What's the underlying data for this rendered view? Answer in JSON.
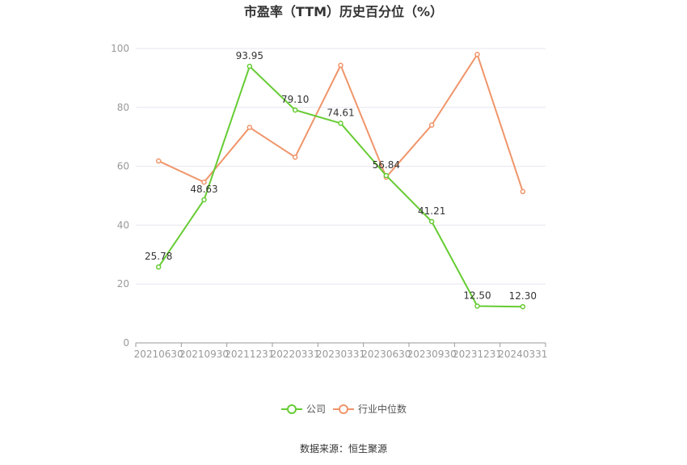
{
  "chart_data": {
    "type": "line",
    "title": "市盈率（TTM）历史百分位（%）",
    "categories": [
      "20210630",
      "20210930",
      "20211231",
      "20220331",
      "20230331",
      "20230630",
      "20230930",
      "20231231",
      "20240331"
    ],
    "ylim": [
      0,
      100
    ],
    "yticks": [
      0,
      20,
      40,
      60,
      80,
      100
    ],
    "grid": true,
    "legend_position": "bottom",
    "series": [
      {
        "name": "公司",
        "color": "#66cc33",
        "values": [
          25.78,
          48.63,
          93.95,
          79.1,
          74.61,
          56.84,
          41.21,
          12.5,
          12.3
        ],
        "labels": [
          "25.78",
          "48.63",
          "93.95",
          "79.10",
          "74.61",
          "56.84",
          "41.21",
          "12.50",
          "12.30"
        ]
      },
      {
        "name": "行业中位数",
        "color": "#f0956a",
        "values": [
          61.8,
          54.6,
          73.2,
          63.1,
          94.3,
          56.3,
          74.0,
          98.0,
          51.4
        ]
      }
    ]
  },
  "source_text": "数据来源：恒生聚源"
}
